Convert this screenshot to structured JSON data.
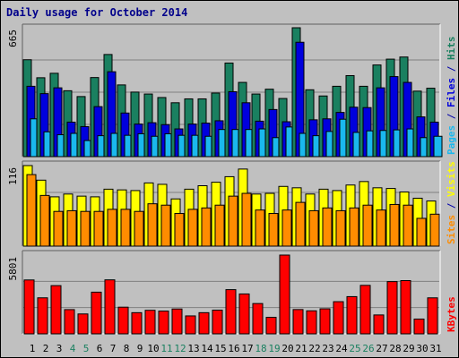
{
  "chart_data": {
    "type": "bar",
    "title": "Daily usage for October 2014",
    "x_labels": [
      "1",
      "2",
      "3",
      "4",
      "5",
      "6",
      "7",
      "8",
      "9",
      "10",
      "11",
      "12",
      "13",
      "14",
      "15",
      "16",
      "17",
      "18",
      "19",
      "20",
      "21",
      "22",
      "23",
      "24",
      "25",
      "26",
      "27",
      "28",
      "29",
      "30",
      "31"
    ],
    "weekend_days": [
      4,
      5,
      11,
      12,
      18,
      19,
      25,
      26
    ],
    "colors": {
      "hits": "#1a8060",
      "files": "#0000dd",
      "pages": "#1ab8ee",
      "visits": "#ffff00",
      "sites": "#ff8c00",
      "kbytes": "#ff0000",
      "weekday_label": "#000000",
      "weekend_label": "#1a8060",
      "panel_bg": "#c0c0c0",
      "grid": "#808080"
    },
    "panels": [
      {
        "name": "hits-files-pages",
        "max_label": "665",
        "max": 665,
        "legend": [
          {
            "text": "Pages",
            "color": "#1ab8ee"
          },
          {
            "text": " / ",
            "color": "#0000aa"
          },
          {
            "text": "Files",
            "color": "#0000dd"
          },
          {
            "text": " / ",
            "color": "#0000aa"
          },
          {
            "text": "Hits",
            "color": "#1a8060"
          }
        ],
        "series": [
          {
            "name": "Hits",
            "color": "#1a8060",
            "values": [
              500,
              407,
              430,
              340,
              310,
              408,
              527,
              370,
              333,
              323,
              305,
              278,
              298,
              298,
              328,
              483,
              383,
              323,
              348,
              300,
              665,
              345,
              313,
              363,
              418,
              363,
              473,
              503,
              514,
              338,
              353
            ]
          },
          {
            "name": "Files",
            "color": "#0000dd",
            "values": [
              363,
              325,
              355,
              178,
              155,
              258,
              438,
              225,
              168,
              175,
              165,
              143,
              168,
              173,
              185,
              335,
              278,
              183,
              243,
              180,
              590,
              190,
              195,
              228,
              255,
              253,
              355,
              413,
              383,
              205,
              178
            ]
          },
          {
            "name": "Pages",
            "color": "#1ab8ee",
            "values": [
              195,
              128,
              113,
              120,
              83,
              108,
              120,
              110,
              118,
              105,
              118,
              110,
              110,
              105,
              140,
              140,
              140,
              143,
              98,
              153,
              120,
              108,
              130,
              193,
              125,
              133,
              135,
              138,
              143,
              98,
              105
            ]
          }
        ]
      },
      {
        "name": "visits-sites",
        "max_label": "116",
        "max": 116,
        "legend": [
          {
            "text": "Sites",
            "color": "#ff8c00"
          },
          {
            "text": " / ",
            "color": "#0000aa"
          },
          {
            "text": "Visits",
            "color": "#ffff00"
          }
        ],
        "series": [
          {
            "name": "Visits",
            "color": "#ffff00",
            "values": [
              116,
              95,
              71,
              75,
              72,
              71,
              82,
              81,
              80,
              91,
              89,
              68,
              82,
              87,
              92,
              100,
              111,
              75,
              76,
              86,
              84,
              75,
              82,
              80,
              88,
              93,
              84,
              83,
              78,
              69,
              65
            ]
          },
          {
            "name": "Sites",
            "color": "#ff8c00",
            "values": [
              103,
              73,
              50,
              51,
              50,
              50,
              53,
              53,
              50,
              61,
              59,
              47,
              53,
              55,
              59,
              72,
              76,
              52,
              47,
              52,
              63,
              51,
              55,
              51,
              55,
              59,
              52,
              60,
              59,
              40,
              46
            ]
          }
        ]
      },
      {
        "name": "kbytes",
        "max_label": "5801",
        "max": 5801,
        "legend": [
          {
            "text": "KBytes",
            "color": "#ff0000"
          }
        ],
        "series": [
          {
            "name": "KBytes",
            "color": "#ff0000",
            "values": [
              3969,
              2653,
              3551,
              1784,
              1465,
              3070,
              3977,
              1964,
              1559,
              1734,
              1676,
              1830,
              1321,
              1559,
              1745,
              3257,
              2938,
              2232,
              1217,
              5801,
              1789,
              1696,
              1842,
              2369,
              2741,
              3571,
              1392,
              3848,
              3922,
              1087,
              2652
            ]
          }
        ]
      }
    ]
  }
}
